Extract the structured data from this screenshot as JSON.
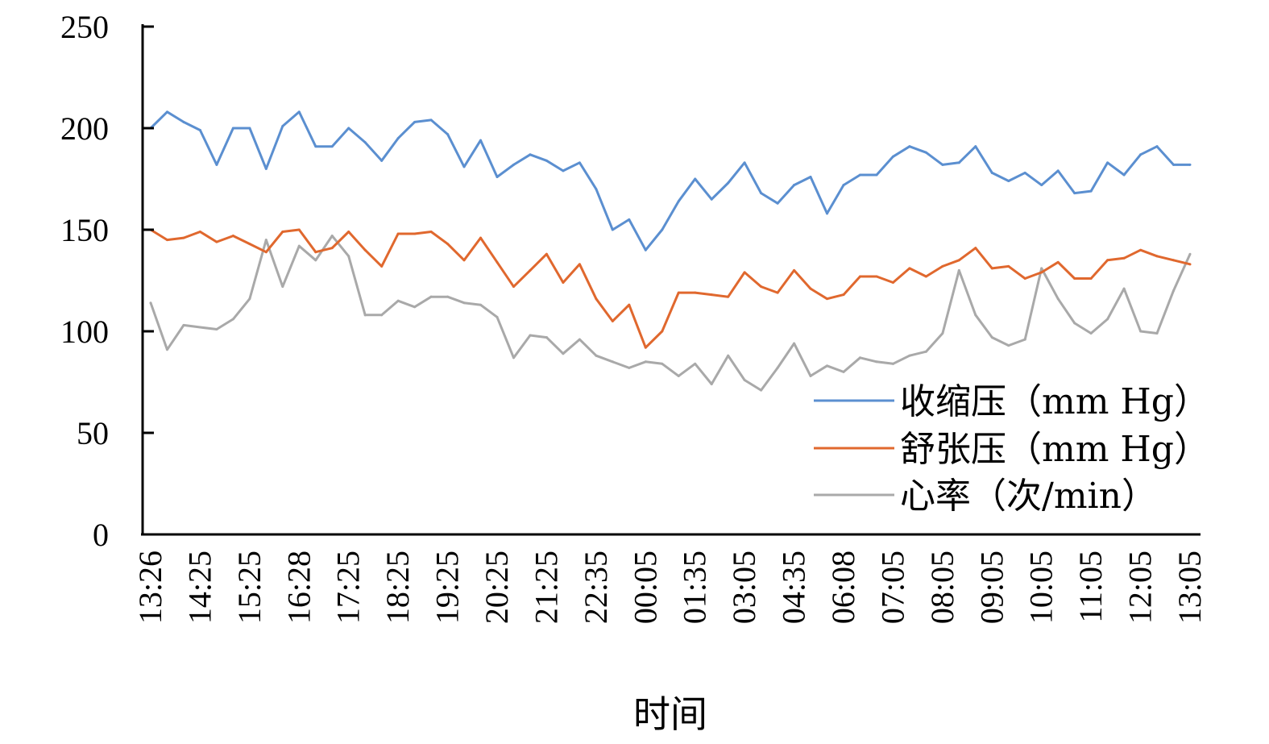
{
  "chart_data": {
    "type": "line",
    "xlabel": "时间",
    "ylabel": "",
    "ylim": [
      0,
      250
    ],
    "yticks": [
      0,
      50,
      100,
      150,
      200,
      250
    ],
    "grid": false,
    "legend_position": "lower-right",
    "x_tick_labels": [
      "13:26",
      "14:25",
      "15:25",
      "16:28",
      "17:25",
      "18:25",
      "19:25",
      "20:25",
      "21:25",
      "22:35",
      "00:05",
      "01:35",
      "03:05",
      "04:35",
      "06:08",
      "07:05",
      "08:05",
      "09:05",
      "10:05",
      "11:05",
      "12:05",
      "13:05"
    ],
    "series": [
      {
        "name": "收缩压（mm Hg）",
        "color": "#5B8FD0",
        "values": [
          200,
          208,
          203,
          199,
          182,
          200,
          200,
          180,
          201,
          208,
          191,
          191,
          200,
          193,
          184,
          195,
          203,
          204,
          197,
          181,
          194,
          176,
          182,
          187,
          184,
          179,
          183,
          170,
          150,
          155,
          140,
          150,
          164,
          175,
          165,
          173,
          183,
          168,
          163,
          172,
          176,
          158,
          172,
          177,
          177,
          186,
          191,
          188,
          182,
          183,
          191,
          178,
          174,
          178,
          172,
          179,
          168,
          169,
          183,
          177,
          187,
          191,
          182,
          182
        ]
      },
      {
        "name": "舒张压（mm Hg）",
        "color": "#E0682E",
        "values": [
          150,
          145,
          146,
          149,
          144,
          147,
          143,
          139,
          149,
          150,
          139,
          141,
          149,
          140,
          132,
          148,
          148,
          149,
          143,
          135,
          146,
          134,
          122,
          130,
          138,
          124,
          133,
          116,
          105,
          113,
          92,
          100,
          119,
          119,
          118,
          117,
          129,
          122,
          119,
          130,
          121,
          116,
          118,
          127,
          127,
          124,
          131,
          127,
          132,
          135,
          141,
          131,
          132,
          126,
          129,
          134,
          126,
          126,
          135,
          136,
          140,
          137,
          135,
          133
        ]
      },
      {
        "name": "心率（次/min）",
        "color": "#A9A9A9",
        "values": [
          114,
          91,
          103,
          102,
          101,
          106,
          116,
          145,
          122,
          142,
          135,
          147,
          137,
          108,
          108,
          115,
          112,
          117,
          117,
          114,
          113,
          107,
          87,
          98,
          97,
          89,
          96,
          88,
          85,
          82,
          85,
          84,
          78,
          84,
          74,
          88,
          76,
          71,
          82,
          94,
          78,
          83,
          80,
          87,
          85,
          84,
          88,
          90,
          99,
          130,
          108,
          97,
          93,
          96,
          131,
          116,
          104,
          99,
          106,
          121,
          100,
          99,
          120,
          138
        ]
      }
    ]
  }
}
